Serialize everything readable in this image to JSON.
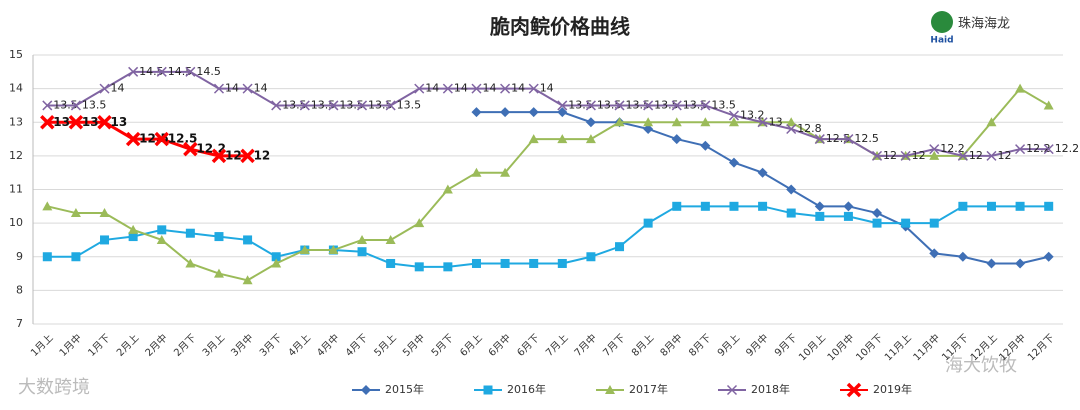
{
  "chart_data": {
    "type": "line",
    "title": "脆肉鲩价格曲线",
    "logo": "珠海海龙",
    "logo_sub": "Haid",
    "watermarks": [
      "大数跨境",
      "海大饮牧"
    ],
    "categories": [
      "1月上",
      "1月中",
      "1月下",
      "2月上",
      "2月中",
      "2月下",
      "3月上",
      "3月中",
      "3月下",
      "4月上",
      "4月中",
      "4月下",
      "5月上",
      "5月中",
      "5月下",
      "6月上",
      "6月中",
      "6月下",
      "7月上",
      "7月中",
      "7月下",
      "8月上",
      "8月中",
      "8月下",
      "9月上",
      "9月中",
      "9月下",
      "10月上",
      "10月中",
      "10月下",
      "11月上",
      "11月中",
      "11月下",
      "12月上",
      "12月中",
      "12月下"
    ],
    "ylim": [
      7,
      15
    ],
    "yticks": [
      7,
      8,
      9,
      10,
      11,
      12,
      13,
      14,
      15
    ],
    "grid": true,
    "series": [
      {
        "name": "2015年",
        "color": "#3f6fb5",
        "marker": "diamond",
        "values": [
          null,
          null,
          null,
          null,
          null,
          null,
          null,
          null,
          null,
          null,
          null,
          null,
          null,
          null,
          null,
          13.3,
          13.3,
          13.3,
          13.3,
          13.0,
          13.0,
          12.8,
          12.5,
          12.3,
          11.8,
          11.5,
          11.0,
          10.5,
          10.5,
          10.3,
          9.9,
          9.1,
          9.0,
          8.8,
          8.8,
          9.0
        ]
      },
      {
        "name": "2016年",
        "color": "#1fa9e1",
        "marker": "square",
        "values": [
          9,
          9,
          9.5,
          9.6,
          9.8,
          9.7,
          9.6,
          9.5,
          9.0,
          9.2,
          9.2,
          9.15,
          8.8,
          8.7,
          8.7,
          8.8,
          8.8,
          8.8,
          8.8,
          9.0,
          9.3,
          10.0,
          10.5,
          10.5,
          10.5,
          10.5,
          10.3,
          10.2,
          10.2,
          10.0,
          10.0,
          10.0,
          10.5,
          10.5,
          10.5,
          10.5
        ]
      },
      {
        "name": "2017年",
        "color": "#9bbb59",
        "marker": "triangle",
        "values": [
          10.5,
          10.3,
          10.3,
          9.8,
          9.5,
          8.8,
          8.5,
          8.3,
          8.8,
          9.2,
          9.2,
          9.5,
          9.5,
          10,
          11,
          11.5,
          11.5,
          12.5,
          12.5,
          12.5,
          13,
          13,
          13,
          13,
          13,
          13,
          13,
          12.5,
          12.5,
          12,
          12,
          12,
          12,
          13,
          14,
          13.5
        ]
      },
      {
        "name": "2018年",
        "color": "#8064a2",
        "marker": "x",
        "labels": true,
        "values": [
          13.5,
          13.5,
          14,
          14.5,
          14.5,
          14.5,
          14,
          14,
          13.5,
          13.5,
          13.5,
          13.5,
          13.5,
          14,
          14,
          14,
          14,
          14,
          13.5,
          13.5,
          13.5,
          13.5,
          13.5,
          13.5,
          13.2,
          13,
          12.8,
          12.5,
          12.5,
          12,
          12,
          12.2,
          12,
          12,
          12.2,
          12.2
        ]
      },
      {
        "name": "2019年",
        "color": "#ff0000",
        "marker": "bigx",
        "labels": true,
        "values": [
          13,
          13,
          13,
          12.5,
          12.5,
          12.2,
          12,
          12,
          null,
          null,
          null,
          null,
          null,
          null,
          null,
          null,
          null,
          null,
          null,
          null,
          null,
          null,
          null,
          null,
          null,
          null,
          null,
          null,
          null,
          null,
          null,
          null,
          null,
          null,
          null,
          null
        ]
      }
    ]
  }
}
